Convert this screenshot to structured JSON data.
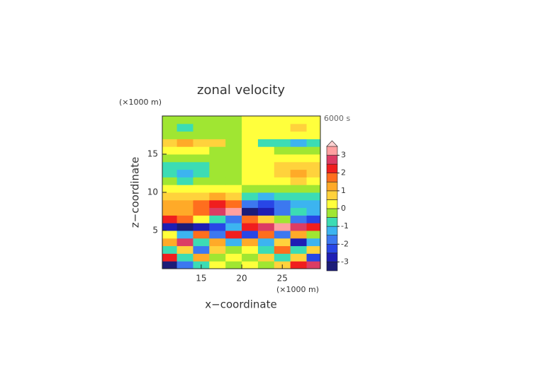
{
  "chart_data": {
    "type": "contour",
    "title": "zonal velocity",
    "x_unit": "(×1000 m)",
    "y_unit": "(×1000 m)",
    "time_label": "6000 s",
    "xlabel": "x−coordinate",
    "ylabel": "z−coordinate",
    "xlim": [
      10.2,
      29.7
    ],
    "ylim": [
      0,
      20
    ],
    "xticks": [
      15,
      20,
      25
    ],
    "yticks": [
      5,
      10,
      15
    ],
    "x": [
      11,
      13,
      15,
      17,
      19,
      21,
      23,
      25,
      27,
      29
    ],
    "z": [
      0.5,
      1.5,
      2.5,
      3.5,
      4.5,
      5.5,
      6.5,
      7.5,
      8.5,
      9.5,
      10.5,
      11.5,
      12.5,
      13.5,
      14.5,
      15.5,
      16.5,
      17.5,
      18.5,
      19.5
    ],
    "values": [
      [
        -3.2,
        -2.0,
        -0.8,
        0.4,
        -0.3,
        0.3,
        -0.4,
        0.8,
        2.0,
        2.8
      ],
      [
        2.2,
        -0.8,
        1.0,
        -0.5,
        0.3,
        -0.3,
        0.5,
        -1.0,
        0.8,
        -2.2
      ],
      [
        -0.6,
        0.8,
        -1.6,
        0.6,
        -0.4,
        0.4,
        -0.6,
        1.6,
        -0.8,
        0.6
      ],
      [
        1.4,
        2.6,
        -0.6,
        1.2,
        -1.4,
        1.4,
        -1.2,
        0.6,
        -2.6,
        -1.4
      ],
      [
        0.4,
        -1.2,
        1.6,
        -1.8,
        2.4,
        -2.4,
        1.8,
        -1.6,
        1.2,
        -0.4
      ],
      [
        -2.6,
        -3.2,
        -2.8,
        -2.2,
        -1.2,
        2.4,
        2.8,
        3.2,
        2.6,
        2.0
      ],
      [
        2.2,
        1.6,
        0.4,
        -0.8,
        -1.6,
        1.6,
        0.8,
        -0.4,
        -1.6,
        -2.2
      ],
      [
        1.3,
        1.0,
        1.6,
        2.6,
        3.2,
        -3.2,
        -2.6,
        -1.6,
        -1.0,
        -1.3
      ],
      [
        1.2,
        1.4,
        1.8,
        2.2,
        1.8,
        -1.8,
        -2.2,
        -1.8,
        -1.4,
        -1.2
      ],
      [
        0.8,
        0.7,
        0.9,
        1.1,
        0.8,
        -0.8,
        -1.1,
        -0.9,
        -0.7,
        -0.8
      ],
      [
        0.3,
        0.2,
        0.3,
        0.3,
        0.3,
        -0.3,
        -0.3,
        -0.3,
        -0.2,
        -0.3
      ],
      [
        -0.4,
        -0.6,
        -0.4,
        -0.2,
        -0.3,
        0.3,
        0.2,
        0.4,
        0.6,
        0.4
      ],
      [
        -0.7,
        -1.1,
        -0.8,
        -0.3,
        -0.3,
        0.3,
        0.3,
        0.8,
        1.1,
        0.7
      ],
      [
        -0.7,
        -0.9,
        -0.6,
        -0.3,
        -0.3,
        0.3,
        0.3,
        0.6,
        0.9,
        0.7
      ],
      [
        -0.3,
        -0.3,
        -0.3,
        -0.3,
        -0.3,
        0.3,
        0.3,
        0.3,
        0.3,
        0.3
      ],
      [
        0.3,
        0.4,
        0.3,
        -0.2,
        -0.3,
        0.3,
        0.2,
        -0.3,
        -0.4,
        -0.3
      ],
      [
        0.7,
        1.2,
        0.9,
        0.6,
        -0.2,
        0.2,
        -0.6,
        -0.9,
        -1.2,
        -0.7
      ],
      [
        -0.3,
        -0.3,
        -0.3,
        -0.3,
        -0.3,
        0.3,
        0.3,
        0.3,
        0.3,
        0.3
      ],
      [
        -0.3,
        -0.7,
        -0.3,
        -0.3,
        -0.3,
        0.3,
        0.3,
        0.3,
        0.7,
        0.3
      ],
      [
        -0.3,
        -0.3,
        -0.3,
        -0.3,
        -0.3,
        0.3,
        0.3,
        0.3,
        0.3,
        0.3
      ]
    ],
    "levels": [
      -3.5,
      -3,
      -2.5,
      -2,
      -1.5,
      -1,
      -0.5,
      0,
      0.5,
      1,
      1.5,
      2,
      2.5,
      3,
      3.5
    ],
    "colors": [
      "#1c1c78",
      "#1e1eb4",
      "#2846e6",
      "#3c78f0",
      "#3cb4f0",
      "#3cdcb4",
      "#a0e632",
      "#ffff3c",
      "#ffd23c",
      "#ffaa28",
      "#ff6e1e",
      "#f01e1e",
      "#dc3c64",
      "#ffa0a0"
    ],
    "over_color": "#ffd0d0",
    "colorbar_ticks": [
      -3,
      -2,
      -1,
      0,
      1,
      2,
      3
    ]
  }
}
